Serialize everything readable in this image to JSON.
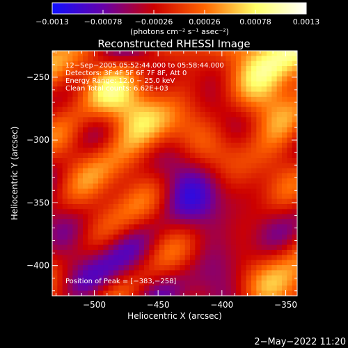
{
  "chart_data": {
    "type": "heatmap",
    "title": "Reconstructed RHESSI Image",
    "xlabel": "Heliocentric X (arcsec)",
    "ylabel": "Heliocentric Y (arcsec)",
    "xlim": [
      -533,
      -341
    ],
    "ylim": [
      -424,
      -229
    ],
    "x_ticks": [
      -500,
      -450,
      -400,
      -350
    ],
    "x_tick_labels": [
      "−500",
      "−450",
      "−400",
      "−350"
    ],
    "y_ticks": [
      -250,
      -300,
      -350,
      -400
    ],
    "y_tick_labels": [
      "−250",
      "−300",
      "−350",
      "−400"
    ],
    "colorbar": {
      "min": -0.0013,
      "max": 0.0013,
      "ticks": [
        -0.0013,
        -0.00078,
        -0.00026,
        0.00026,
        0.00078,
        0.0013
      ],
      "tick_labels": [
        "−0.0013",
        "−0.00078",
        "−0.00026",
        "0.00026",
        "0.00078",
        "0.0013"
      ],
      "unit_text": "(photons cm⁻² s⁻¹ asec⁻²)",
      "stops": [
        "#1010ff",
        "#6600aa",
        "#cc0000",
        "#ff6600",
        "#ffff66",
        "#ffffff"
      ]
    },
    "grid_resolution": [
      48,
      48
    ],
    "info_lines": [
      "12−Sep−2005 05:52:44.000 to 05:58:44.000",
      "Detectors: 3F 4F 5F 6F 7F 8F, Att 0",
      "Energy Range: 12.0 − 25.0 keV",
      "Clean    Total counts: 6.62E+03"
    ],
    "peak_text": "Position of Peak = [−383,−258]",
    "peak": [
      -383,
      -258
    ]
  },
  "footer_date": "2−May−2022 11:20"
}
